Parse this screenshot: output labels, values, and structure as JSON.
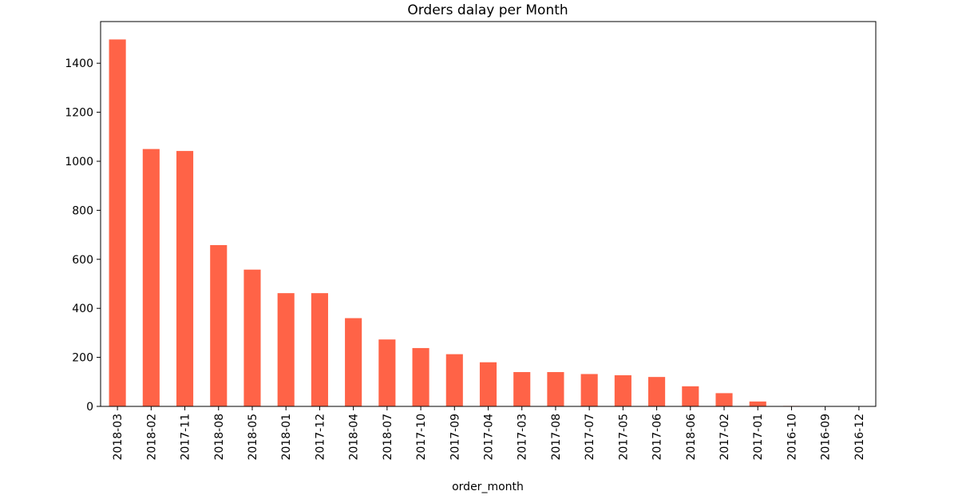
{
  "chart_data": {
    "type": "bar",
    "title": "Orders dalay per Month",
    "xlabel": "order_month",
    "ylabel": "",
    "categories": [
      "2018-03",
      "2018-02",
      "2017-11",
      "2018-08",
      "2018-05",
      "2018-01",
      "2017-12",
      "2018-04",
      "2018-07",
      "2017-10",
      "2017-09",
      "2017-04",
      "2017-03",
      "2017-08",
      "2017-07",
      "2017-05",
      "2017-06",
      "2018-06",
      "2017-02",
      "2017-01",
      "2016-10",
      "2016-09",
      "2016-12"
    ],
    "values": [
      1497,
      1050,
      1042,
      658,
      558,
      462,
      462,
      360,
      273,
      238,
      213,
      180,
      140,
      140,
      132,
      127,
      120,
      82,
      54,
      20,
      2,
      1,
      1
    ],
    "ylim": [
      0,
      1570
    ],
    "yticks": [
      0,
      200,
      400,
      600,
      800,
      1000,
      1200,
      1400
    ],
    "bar_color": "#ff6347",
    "grid": false,
    "legend": "none"
  }
}
